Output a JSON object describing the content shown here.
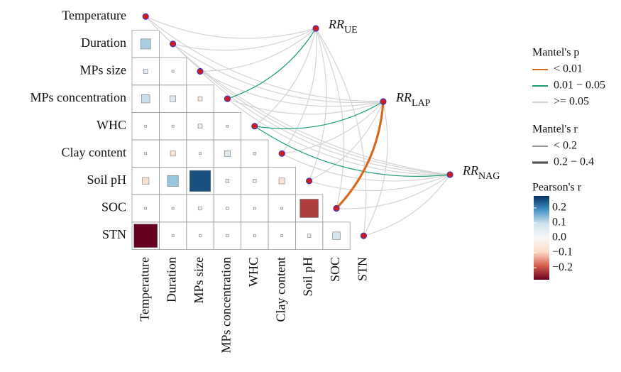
{
  "chart_data": {
    "type": "mantel",
    "variables": [
      "Temperature",
      "Duration",
      "MPs size",
      "MPs concentration",
      "WHC",
      "Clay content",
      "Soil pH",
      "SOC",
      "STN"
    ],
    "matrix": [
      [],
      [
        0.12
      ],
      [
        0.05,
        0.02
      ],
      [
        0.1,
        0.07,
        -0.05
      ],
      [
        0.01,
        0.01,
        0.05,
        0.02
      ],
      [
        0.01,
        -0.06,
        0.005,
        0.07,
        0.03
      ],
      [
        -0.08,
        0.13,
        0.25,
        0.04,
        0.04,
        -0.07
      ],
      [
        0.02,
        -0.02,
        -0.04,
        -0.03,
        0.02,
        -0.02,
        -0.22
      ],
      [
        -0.28,
        0.02,
        0.02,
        0.03,
        0.02,
        0.02,
        0.04,
        0.09
      ]
    ],
    "clim": [
      -0.28,
      0.28
    ],
    "colormap": [
      "#67001f",
      "#d6604d",
      "#fddbc7",
      "#f7f7f7",
      "#d1e5f0",
      "#4393c3",
      "#053061"
    ],
    "responses": [
      {
        "name": "RR",
        "sub": "UE"
      },
      {
        "name": "RR",
        "sub": "LAP"
      },
      {
        "name": "RR",
        "sub": "NAG"
      }
    ],
    "links": [
      {
        "response": 0,
        "variable": 0,
        "p_group": 2,
        "r_group": 0
      },
      {
        "response": 0,
        "variable": 1,
        "p_group": 2,
        "r_group": 0
      },
      {
        "response": 0,
        "variable": 2,
        "p_group": 2,
        "r_group": 0
      },
      {
        "response": 0,
        "variable": 3,
        "p_group": 1,
        "r_group": 0
      },
      {
        "response": 0,
        "variable": 4,
        "p_group": 2,
        "r_group": 0
      },
      {
        "response": 0,
        "variable": 5,
        "p_group": 2,
        "r_group": 0
      },
      {
        "response": 0,
        "variable": 6,
        "p_group": 2,
        "r_group": 0
      },
      {
        "response": 0,
        "variable": 7,
        "p_group": 2,
        "r_group": 0
      },
      {
        "response": 0,
        "variable": 8,
        "p_group": 2,
        "r_group": 0
      },
      {
        "response": 1,
        "variable": 0,
        "p_group": 2,
        "r_group": 0
      },
      {
        "response": 1,
        "variable": 1,
        "p_group": 2,
        "r_group": 0
      },
      {
        "response": 1,
        "variable": 2,
        "p_group": 2,
        "r_group": 0
      },
      {
        "response": 1,
        "variable": 3,
        "p_group": 2,
        "r_group": 0
      },
      {
        "response": 1,
        "variable": 4,
        "p_group": 1,
        "r_group": 0
      },
      {
        "response": 1,
        "variable": 5,
        "p_group": 2,
        "r_group": 0
      },
      {
        "response": 1,
        "variable": 6,
        "p_group": 2,
        "r_group": 0
      },
      {
        "response": 1,
        "variable": 7,
        "p_group": 0,
        "r_group": 1
      },
      {
        "response": 1,
        "variable": 8,
        "p_group": 2,
        "r_group": 0
      },
      {
        "response": 2,
        "variable": 0,
        "p_group": 2,
        "r_group": 0
      },
      {
        "response": 2,
        "variable": 1,
        "p_group": 2,
        "r_group": 0
      },
      {
        "response": 2,
        "variable": 2,
        "p_group": 2,
        "r_group": 0
      },
      {
        "response": 2,
        "variable": 3,
        "p_group": 2,
        "r_group": 0
      },
      {
        "response": 2,
        "variable": 4,
        "p_group": 1,
        "r_group": 0
      },
      {
        "response": 2,
        "variable": 5,
        "p_group": 2,
        "r_group": 0
      },
      {
        "response": 2,
        "variable": 6,
        "p_group": 2,
        "r_group": 0
      },
      {
        "response": 2,
        "variable": 7,
        "p_group": 2,
        "r_group": 0
      },
      {
        "response": 2,
        "variable": 8,
        "p_group": 2,
        "r_group": 0
      }
    ],
    "p_legend": {
      "title": "Mantel's p",
      "labels": [
        "< 0.01",
        "0.01 − 0.05",
        ">= 0.05"
      ],
      "colors": [
        "#d9691b",
        "#1b9e77",
        "#d3d3d3"
      ]
    },
    "r_legend": {
      "title": "Mantel's r",
      "labels": [
        "< 0.2",
        "0.2 − 0.4"
      ],
      "widths": [
        1.2,
        3.2
      ]
    },
    "color_legend": {
      "title": "Pearson's r",
      "ticks": [
        0.2,
        0.1,
        {
          "value": 0,
          "label": "0.0"
        },
        {
          "value": -0.1,
          "label": "−0.1"
        },
        {
          "value": -0.2,
          "label": "−0.2"
        }
      ]
    }
  }
}
